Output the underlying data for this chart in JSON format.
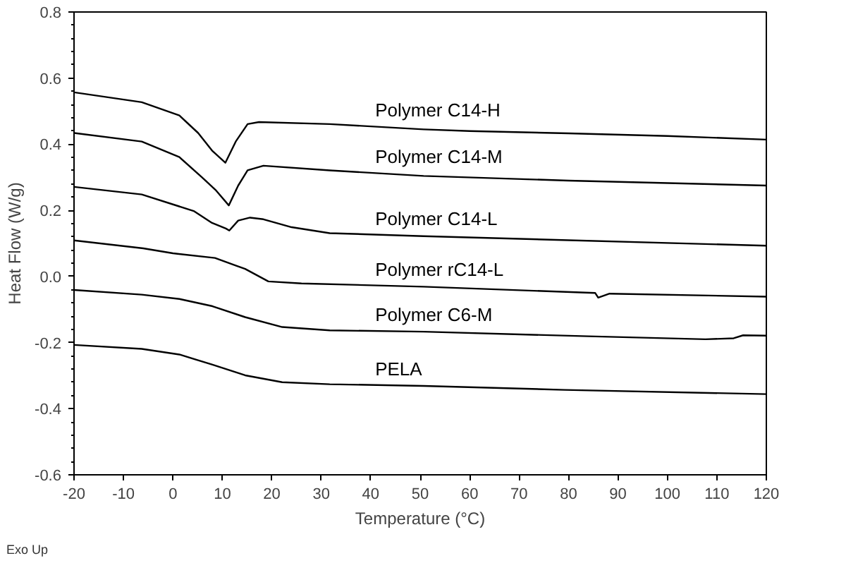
{
  "chart_data": {
    "type": "line",
    "xlabel": "Temperature (°C)",
    "ylabel": "Heat Flow (W/g)",
    "xlim": [
      -20,
      120
    ],
    "ylim": [
      -0.6,
      0.8
    ],
    "xticks": [
      -20,
      -10,
      0,
      10,
      20,
      30,
      40,
      50,
      60,
      70,
      80,
      90,
      100,
      110,
      120
    ],
    "yticks": [
      {
        "value": -0.6,
        "label": "-0.6"
      },
      {
        "value": -0.4,
        "label": "-0.4"
      },
      {
        "value": -0.2,
        "label": "-0.2"
      },
      {
        "value": 0,
        "label": "0.0"
      },
      {
        "value": 0.2,
        "label": "0.2"
      },
      {
        "value": 0.4,
        "label": "0.4"
      },
      {
        "value": 0.6,
        "label": "0.6"
      },
      {
        "value": 0.8,
        "label": "0.8"
      }
    ],
    "grid": false,
    "legend": false,
    "marker": "none",
    "line_style": "solid",
    "annotations": [
      "Exo Up"
    ],
    "series": [
      {
        "name": "Polymer C14-H",
        "color": "#000000",
        "x": [
          -20,
          -6.3,
          1.3,
          5.1,
          7.9,
          10.6,
          12.7,
          15.1,
          17.4,
          31.7,
          50.7,
          60,
          80,
          100,
          120
        ],
        "values": [
          0.557,
          0.527,
          0.487,
          0.434,
          0.381,
          0.344,
          0.408,
          0.461,
          0.467,
          0.461,
          0.445,
          0.44,
          0.433,
          0.425,
          0.414
        ]
      },
      {
        "name": "Polymer C14-M",
        "color": "#000000",
        "x": [
          -20,
          -6.3,
          1.3,
          5.8,
          8.6,
          11.3,
          13.2,
          15.1,
          18.3,
          31.7,
          50.7,
          80,
          120
        ],
        "values": [
          0.434,
          0.408,
          0.361,
          0.301,
          0.262,
          0.215,
          0.275,
          0.321,
          0.335,
          0.321,
          0.304,
          0.29,
          0.275
        ]
      },
      {
        "name": "Polymer C14-L",
        "color": "#000000",
        "x": [
          -20,
          -6.3,
          4.2,
          7.9,
          10.7,
          11.4,
          13.2,
          15.6,
          18.3,
          24,
          31.7,
          50.7,
          120
        ],
        "values": [
          0.271,
          0.248,
          0.198,
          0.162,
          0.145,
          0.139,
          0.169,
          0.178,
          0.173,
          0.149,
          0.131,
          0.122,
          0.093
        ]
      },
      {
        "name": "Polymer rC14-L",
        "color": "#000000",
        "x": [
          -20,
          -6,
          0,
          8.5,
          12.7,
          14.6,
          19.3,
          26,
          50.7,
          85.4,
          86,
          88.3,
          120
        ],
        "values": [
          0.109,
          0.085,
          0.07,
          0.056,
          0.033,
          0.023,
          -0.015,
          -0.021,
          -0.031,
          -0.05,
          -0.064,
          -0.052,
          -0.061
        ]
      },
      {
        "name": "Polymer C6-M",
        "color": "#000000",
        "x": [
          -20,
          -6.3,
          1.3,
          8,
          14.6,
          22.1,
          31.7,
          50.7,
          84,
          107.7,
          113.4,
          115.3,
          120
        ],
        "values": [
          -0.041,
          -0.055,
          -0.068,
          -0.09,
          -0.123,
          -0.153,
          -0.163,
          -0.167,
          -0.181,
          -0.19,
          -0.187,
          -0.178,
          -0.179
        ]
      },
      {
        "name": "PELA",
        "color": "#000000",
        "x": [
          -20,
          -6.3,
          1.3,
          8,
          14.6,
          22.1,
          31.7,
          50.7,
          79.2,
          120
        ],
        "values": [
          -0.207,
          -0.219,
          -0.236,
          -0.267,
          -0.299,
          -0.32,
          -0.326,
          -0.331,
          -0.343,
          -0.356
        ]
      }
    ]
  }
}
